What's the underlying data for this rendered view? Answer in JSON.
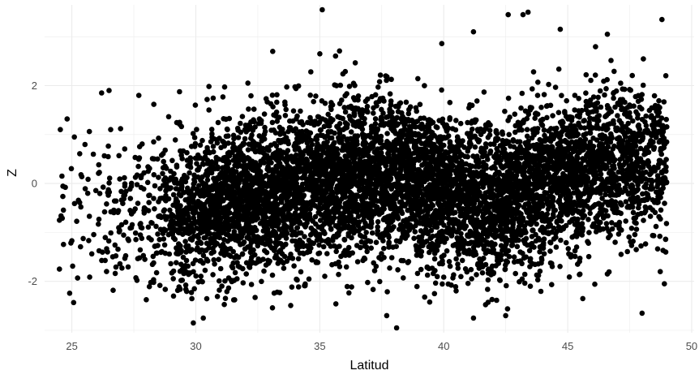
{
  "chart_data": {
    "type": "scatter",
    "title": "",
    "xlabel": "Latitud",
    "ylabel": "Z",
    "xlim": [
      23.9,
      50.1
    ],
    "ylim": [
      -3.05,
      3.65
    ],
    "x_ticks": [
      25,
      30,
      35,
      40,
      45,
      50
    ],
    "y_ticks": [
      -2,
      0,
      2
    ],
    "grid": true,
    "point_color": "#000000",
    "grid_color": "#ebebeb",
    "outliers": [
      {
        "x": 24.6,
        "y": 0.15
      },
      {
        "x": 24.5,
        "y": -0.75
      },
      {
        "x": 24.5,
        "y": -1.75
      },
      {
        "x": 25.1,
        "y": 0.95
      },
      {
        "x": 26.2,
        "y": 1.85
      },
      {
        "x": 26.5,
        "y": 1.9
      },
      {
        "x": 27.7,
        "y": 1.8
      },
      {
        "x": 35.1,
        "y": 3.55
      },
      {
        "x": 33.1,
        "y": 2.7
      },
      {
        "x": 35.0,
        "y": 2.65
      },
      {
        "x": 41.2,
        "y": 3.1
      },
      {
        "x": 42.6,
        "y": 3.45
      },
      {
        "x": 43.2,
        "y": 3.45
      },
      {
        "x": 43.4,
        "y": 3.5
      },
      {
        "x": 44.7,
        "y": 3.15
      },
      {
        "x": 46.6,
        "y": 3.05
      },
      {
        "x": 48.8,
        "y": 3.35
      },
      {
        "x": 48.0,
        "y": -2.65
      },
      {
        "x": 48.9,
        "y": -2.05
      },
      {
        "x": 29.9,
        "y": -2.85
      },
      {
        "x": 30.3,
        "y": -2.75
      },
      {
        "x": 38.1,
        "y": -2.95
      },
      {
        "x": 37.7,
        "y": -2.7
      },
      {
        "x": 41.2,
        "y": -2.75
      },
      {
        "x": 42.5,
        "y": -2.7
      },
      {
        "x": 46.6,
        "y": -1.85
      },
      {
        "x": 45.4,
        "y": -1.65
      },
      {
        "x": 28.3,
        "y": 0.85
      },
      {
        "x": 26.4,
        "y": -1.8
      },
      {
        "x": 29.1,
        "y": -2.3
      }
    ],
    "dense_cloud": {
      "n_points": 7000,
      "x_range": [
        24.5,
        49.0
      ],
      "mean_trend": [
        {
          "x": 25,
          "y": -0.6
        },
        {
          "x": 28,
          "y": -0.6
        },
        {
          "x": 30,
          "y": -0.55
        },
        {
          "x": 32,
          "y": -0.3
        },
        {
          "x": 35,
          "y": 0.05
        },
        {
          "x": 38,
          "y": 0.2
        },
        {
          "x": 40,
          "y": -0.1
        },
        {
          "x": 42,
          "y": -0.45
        },
        {
          "x": 44,
          "y": 0.0
        },
        {
          "x": 46,
          "y": 0.4
        },
        {
          "x": 49,
          "y": 0.45
        }
      ],
      "spread_sd": 0.78,
      "density_profile": [
        {
          "x": 24.5,
          "w": 0.05
        },
        {
          "x": 27,
          "w": 0.15
        },
        {
          "x": 29,
          "w": 0.35
        },
        {
          "x": 30,
          "w": 0.7
        },
        {
          "x": 32,
          "w": 1.0
        },
        {
          "x": 38,
          "w": 1.0
        },
        {
          "x": 45,
          "w": 0.9
        },
        {
          "x": 48,
          "w": 0.7
        },
        {
          "x": 49,
          "w": 0.55
        }
      ]
    }
  }
}
